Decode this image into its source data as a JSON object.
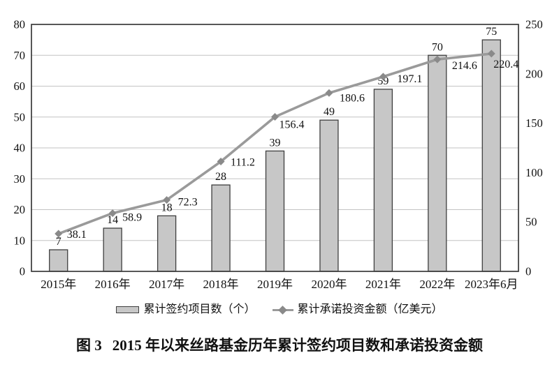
{
  "figure": {
    "caption_label": "图 3",
    "caption_text": "2015 年以来丝路基金历年累计签约项目数和承诺投资金额"
  },
  "colors": {
    "bar_fill": "#c7c7c7",
    "bar_stroke": "#3f3f3f",
    "line": "#9a9a9a",
    "marker": "#8a8a8a",
    "grid": "#c3c3c3",
    "axis": "#3a3a3a",
    "text": "#111111",
    "background": "#ffffff"
  },
  "chart_data": {
    "type": "combo",
    "title": "图 3　2015 年以来丝路基金历年累计签约项目数和承诺投资金额",
    "categories": [
      "2015年",
      "2016年",
      "2017年",
      "2018年",
      "2019年",
      "2020年",
      "2021年",
      "2022年",
      "2023年6月"
    ],
    "series": [
      {
        "name": "累计签约项目数（个）",
        "type": "bar",
        "axis": "left",
        "values": [
          7,
          14,
          18,
          28,
          39,
          49,
          59,
          70,
          75
        ]
      },
      {
        "name": "累计承诺投资金额（亿美元）",
        "type": "line",
        "axis": "right",
        "values": [
          38.1,
          58.9,
          72.3,
          111.2,
          156.4,
          180.6,
          197.1,
          214.6,
          220.4
        ]
      }
    ],
    "left_axis": {
      "min": 0,
      "max": 80,
      "ticks": [
        0,
        10,
        20,
        30,
        40,
        50,
        60,
        70,
        80
      ]
    },
    "right_axis": {
      "min": 0,
      "max": 250,
      "ticks": [
        0,
        50,
        100,
        150,
        200,
        250
      ]
    },
    "grid": "horizontal",
    "data_labels": true,
    "legend_position": "bottom"
  }
}
